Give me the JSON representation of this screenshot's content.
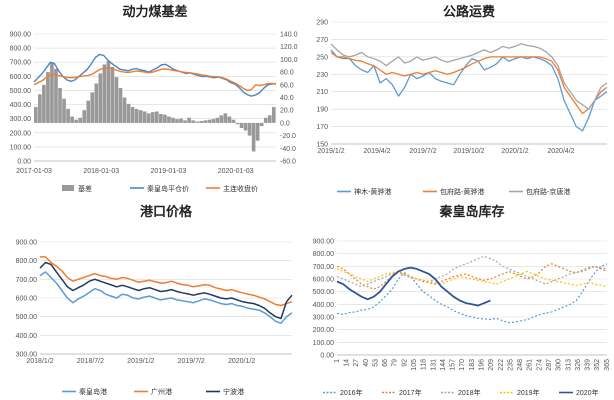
{
  "chart_data": [
    {
      "type": "bar+line",
      "title": "动力煤基差",
      "x_ticks": [
        "2017-01-03",
        "2018-01-03",
        "2019-01-03",
        "2020-01-03"
      ],
      "left_ticks": [
        "0.00",
        "100.00",
        "200.00",
        "300.00",
        "400.00",
        "500.00",
        "600.00",
        "700.00",
        "800.00",
        "900.00"
      ],
      "right_ticks": [
        "140.0",
        "120.0",
        "100.0",
        "80.0",
        "60.0",
        "40.0",
        "20.0",
        "0.0",
        "-20.0",
        "-40.0",
        "-60.0"
      ],
      "ylim_left": [
        0,
        900
      ],
      "ylim_right": [
        -60,
        140
      ],
      "legend_position": "bottom",
      "colors": {
        "basis": "#999999",
        "spot": "#4a86c8",
        "futures": "#ed7d31"
      },
      "series": [
        {
          "name": "基差",
          "axis": "right",
          "kind": "bar",
          "values": [
            25,
            45,
            60,
            80,
            95,
            85,
            55,
            38,
            22,
            10,
            5,
            8,
            20,
            35,
            48,
            62,
            78,
            92,
            98,
            88,
            72,
            55,
            40,
            30,
            25,
            22,
            20,
            18,
            15,
            17,
            18,
            14,
            13,
            10,
            8,
            6,
            7,
            4,
            8,
            4,
            2,
            3,
            4,
            5,
            6,
            8,
            12,
            15,
            10,
            5,
            -2,
            -8,
            -12,
            -20,
            -45,
            -28,
            -5,
            8,
            12,
            25
          ]
        },
        {
          "name": "秦皇岛平仓价",
          "axis": "left",
          "kind": "line",
          "values": [
            560,
            590,
            620,
            660,
            700,
            690,
            640,
            600,
            575,
            565,
            575,
            600,
            625,
            650,
            690,
            735,
            755,
            748,
            715,
            690,
            670,
            650,
            645,
            640,
            650,
            655,
            645,
            640,
            630,
            645,
            660,
            680,
            685,
            670,
            650,
            640,
            630,
            620,
            625,
            615,
            605,
            598,
            600,
            595,
            590,
            595,
            585,
            575,
            555,
            545,
            520,
            490,
            470,
            460,
            468,
            485,
            515,
            540,
            545,
            550
          ]
        },
        {
          "name": "主连收盘价",
          "axis": "left",
          "kind": "line",
          "values": [
            540,
            555,
            570,
            590,
            610,
            615,
            605,
            598,
            592,
            590,
            592,
            598,
            602,
            605,
            612,
            630,
            648,
            658,
            660,
            655,
            645,
            635,
            630,
            628,
            632,
            638,
            635,
            630,
            625,
            630,
            640,
            650,
            652,
            648,
            642,
            638,
            632,
            628,
            625,
            620,
            615,
            610,
            605,
            600,
            598,
            596,
            590,
            580,
            565,
            552,
            535,
            515,
            500,
            505,
            540,
            535,
            540,
            548,
            550,
            545
          ]
        }
      ]
    },
    {
      "type": "line",
      "title": "公路运费",
      "x_ticks": [
        "2019/1/2",
        "2019/4/2",
        "2019/7/2",
        "2019/10/2",
        "2020/1/2",
        "2020/4/2"
      ],
      "y_ticks": [
        "150",
        "170",
        "190",
        "210",
        "230",
        "250",
        "270",
        "290"
      ],
      "ylim": [
        150,
        290
      ],
      "legend_position": "bottom",
      "series": [
        {
          "name": "神木-黄骅港",
          "color": "#5b9bd5",
          "values": [
            258,
            250,
            248,
            248,
            240,
            235,
            232,
            240,
            220,
            225,
            218,
            205,
            215,
            230,
            225,
            228,
            232,
            225,
            222,
            220,
            218,
            230,
            240,
            248,
            245,
            235,
            238,
            242,
            250,
            245,
            248,
            250,
            248,
            250,
            248,
            245,
            240,
            225,
            200,
            185,
            170,
            165,
            180,
            200,
            205,
            210
          ]
        },
        {
          "name": "包府路-黄骅港",
          "color": "#ed7d31",
          "values": [
            255,
            250,
            250,
            248,
            246,
            245,
            242,
            240,
            235,
            230,
            232,
            230,
            228,
            230,
            232,
            230,
            232,
            234,
            232,
            230,
            232,
            235,
            238,
            242,
            245,
            248,
            250,
            250,
            250,
            250,
            250,
            250,
            250,
            250,
            250,
            248,
            245,
            235,
            215,
            205,
            195,
            185,
            190,
            200,
            210,
            215
          ]
        },
        {
          "name": "包府路-京唐港",
          "color": "#a5a5a5",
          "values": [
            265,
            258,
            252,
            250,
            252,
            255,
            250,
            248,
            245,
            240,
            245,
            250,
            243,
            245,
            250,
            246,
            248,
            250,
            246,
            244,
            246,
            248,
            250,
            252,
            255,
            258,
            255,
            258,
            262,
            260,
            262,
            265,
            263,
            262,
            260,
            256,
            250,
            240,
            220,
            210,
            200,
            195,
            190,
            200,
            215,
            220
          ]
        }
      ]
    },
    {
      "type": "line",
      "title": "港口价格",
      "x_ticks": [
        "2018/1/2",
        "2018/7/2",
        "2019/1/2",
        "2019/7/2",
        "2020/1/2"
      ],
      "y_ticks": [
        "300.00",
        "400.00",
        "500.00",
        "600.00",
        "700.00",
        "800.00",
        "900.00"
      ],
      "ylim": [
        300,
        900
      ],
      "legend_position": "bottom",
      "series": [
        {
          "name": "秦皇岛港",
          "color": "#5b9bd5",
          "values": [
            720,
            740,
            710,
            680,
            640,
            600,
            575,
            595,
            610,
            630,
            650,
            640,
            620,
            610,
            600,
            620,
            615,
            600,
            595,
            605,
            610,
            600,
            590,
            595,
            600,
            590,
            585,
            580,
            575,
            585,
            595,
            590,
            580,
            570,
            565,
            570,
            560,
            555,
            545,
            540,
            535,
            520,
            500,
            475,
            465,
            500,
            520
          ]
        },
        {
          "name": "广州港",
          "color": "#ed7d31",
          "values": [
            820,
            820,
            790,
            770,
            745,
            710,
            690,
            700,
            710,
            720,
            730,
            720,
            715,
            705,
            700,
            710,
            705,
            695,
            685,
            690,
            695,
            688,
            680,
            682,
            690,
            680,
            672,
            668,
            660,
            665,
            672,
            668,
            655,
            648,
            640,
            645,
            635,
            628,
            620,
            615,
            605,
            595,
            580,
            565,
            560,
            570,
            580
          ]
        },
        {
          "name": "宁波港",
          "color": "#203864",
          "values": [
            760,
            790,
            780,
            740,
            700,
            660,
            640,
            655,
            670,
            690,
            700,
            690,
            680,
            670,
            660,
            668,
            660,
            650,
            640,
            650,
            655,
            645,
            635,
            638,
            645,
            635,
            628,
            622,
            615,
            622,
            628,
            620,
            610,
            600,
            595,
            600,
            590,
            580,
            575,
            570,
            560,
            545,
            520,
            500,
            490,
            580,
            615
          ]
        }
      ]
    },
    {
      "type": "line",
      "title": "秦皇岛库存",
      "x_ticks": [
        "1",
        "14",
        "27",
        "40",
        "53",
        "66",
        "79",
        "92",
        "105",
        "118",
        "131",
        "144",
        "157",
        "170",
        "183",
        "196",
        "209",
        "222",
        "235",
        "248",
        "261",
        "274",
        "287",
        "300",
        "313",
        "326",
        "339",
        "352",
        "365"
      ],
      "y_ticks": [
        "0.00",
        "100.00",
        "200.00",
        "300.00",
        "400.00",
        "500.00",
        "600.00",
        "700.00",
        "800.00",
        "900.00"
      ],
      "ylim": [
        0,
        900
      ],
      "legend_position": "bottom",
      "series": [
        {
          "name": "2016年",
          "color": "#5b9bd5",
          "dash": "2,2",
          "values": [
            330,
            320,
            335,
            340,
            355,
            360,
            380,
            420,
            470,
            520,
            600,
            650,
            620,
            560,
            500,
            470,
            430,
            400,
            380,
            350,
            330,
            310,
            300,
            290,
            285,
            280,
            290,
            270,
            255,
            260,
            270,
            280,
            300,
            320,
            330,
            340,
            360,
            380,
            400,
            430,
            500,
            580,
            650,
            700,
            720
          ]
        },
        {
          "name": "2017年",
          "color": "#ed7d31",
          "dash": "2,2",
          "values": [
            700,
            680,
            640,
            600,
            560,
            540,
            520,
            540,
            580,
            620,
            660,
            640,
            620,
            600,
            580,
            570,
            560,
            580,
            600,
            620,
            630,
            640,
            620,
            600,
            590,
            600,
            620,
            640,
            660,
            640,
            620,
            600,
            620,
            650,
            700,
            720,
            700,
            680,
            660,
            650,
            670,
            690,
            700,
            680,
            660
          ]
        },
        {
          "name": "2018年",
          "color": "#a5a5a5",
          "dash": "2,2",
          "values": [
            620,
            600,
            580,
            560,
            540,
            560,
            580,
            600,
            620,
            640,
            650,
            630,
            610,
            600,
            590,
            580,
            600,
            620,
            640,
            680,
            700,
            720,
            740,
            760,
            780,
            760,
            740,
            700,
            680,
            660,
            640,
            620,
            600,
            580,
            560,
            580,
            600,
            620,
            640,
            650,
            660,
            680,
            700,
            690,
            680
          ]
        },
        {
          "name": "2019年",
          "color": "#ffc000",
          "dash": "2,2",
          "values": [
            680,
            660,
            640,
            620,
            600,
            580,
            600,
            620,
            640,
            650,
            660,
            640,
            620,
            600,
            590,
            580,
            570,
            560,
            580,
            600,
            620,
            610,
            600,
            590,
            580,
            570,
            560,
            580,
            600,
            620,
            640,
            660,
            640,
            620,
            600,
            590,
            580,
            570,
            560,
            550,
            560,
            570,
            560,
            550,
            540
          ]
        },
        {
          "name": "2020年",
          "color": "#2e5597",
          "dash": "",
          "values": [
            580,
            560,
            520,
            490,
            460,
            440,
            460,
            500,
            560,
            620,
            660,
            680,
            690,
            680,
            660,
            640,
            600,
            540,
            500,
            460,
            430,
            410,
            400,
            390,
            410,
            430
          ]
        }
      ]
    }
  ]
}
